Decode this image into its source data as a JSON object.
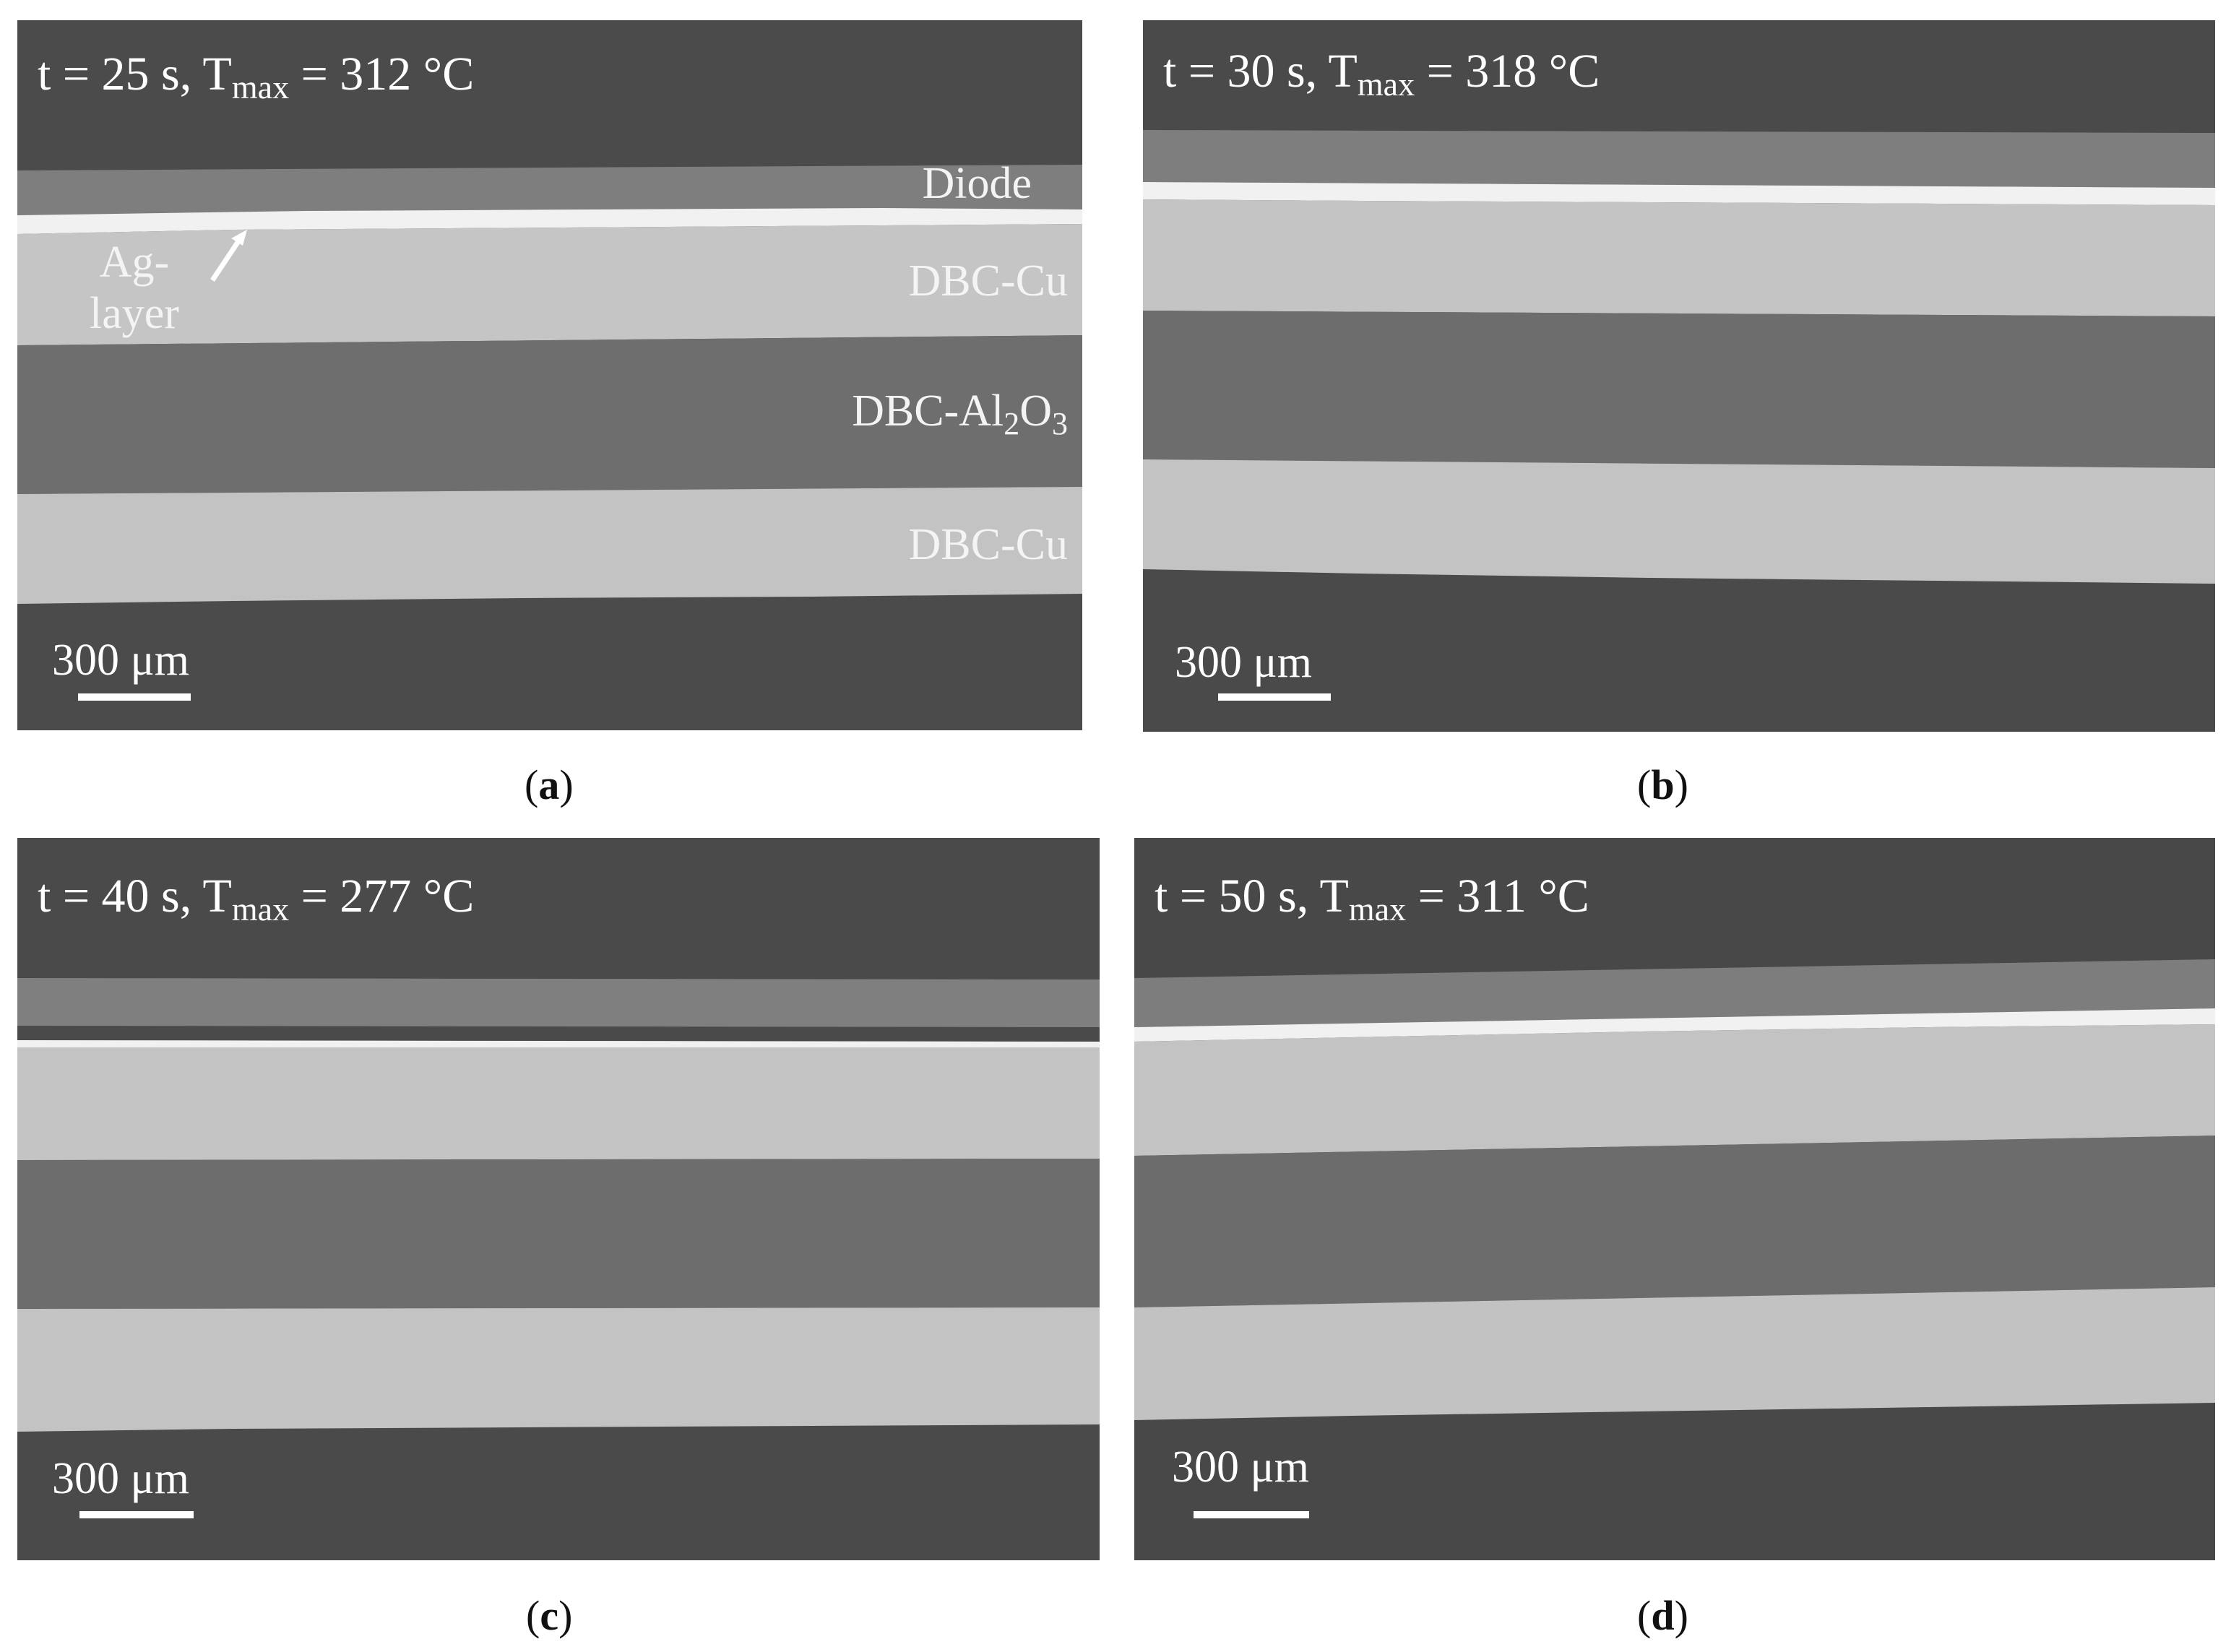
{
  "panels": [
    {
      "id": "a",
      "time_label": {
        "prefix": "t = 25 s, T",
        "sub": "max",
        "suffix": " = 312 °C"
      },
      "scale_label": "300 μm",
      "caption": {
        "open": "(",
        "letter": "a",
        "close": ")"
      },
      "layer_labels": [
        {
          "text": "Diode"
        },
        {
          "text": "DBC-Cu"
        },
        {
          "pre": "DBC-Al",
          "sub1": "2",
          "mid": "O",
          "sub2": "3"
        },
        {
          "text": "DBC-Cu"
        }
      ],
      "ag_label": {
        "line1": "Ag-",
        "line2": "layer"
      }
    },
    {
      "id": "b",
      "time_label": {
        "prefix": "t = 30 s, T",
        "sub": "max",
        "suffix": " = 318 °C"
      },
      "scale_label": "300 μm",
      "caption": {
        "open": "(",
        "letter": "b",
        "close": ")"
      }
    },
    {
      "id": "c",
      "time_label": {
        "prefix": "t = 40 s, T",
        "sub": "max",
        "suffix": " = 277 °C"
      },
      "scale_label": "300 μm",
      "caption": {
        "open": "(",
        "letter": "c",
        "close": ")"
      }
    },
    {
      "id": "d",
      "time_label": {
        "prefix": "t = 50 s, T",
        "sub": "max",
        "suffix": " = 311 °C"
      },
      "scale_label": "300 μm",
      "caption": {
        "open": "(",
        "letter": "d",
        "close": ")"
      }
    }
  ],
  "colors": {
    "background_dark": "#4a4a4a",
    "diode": "#7e7e7e",
    "ag_layer": "#f1f1f1",
    "dbc_cu": "#c4c4c4",
    "dbc_al2o3": "#6e6e6e",
    "text": "#ffffff"
  }
}
